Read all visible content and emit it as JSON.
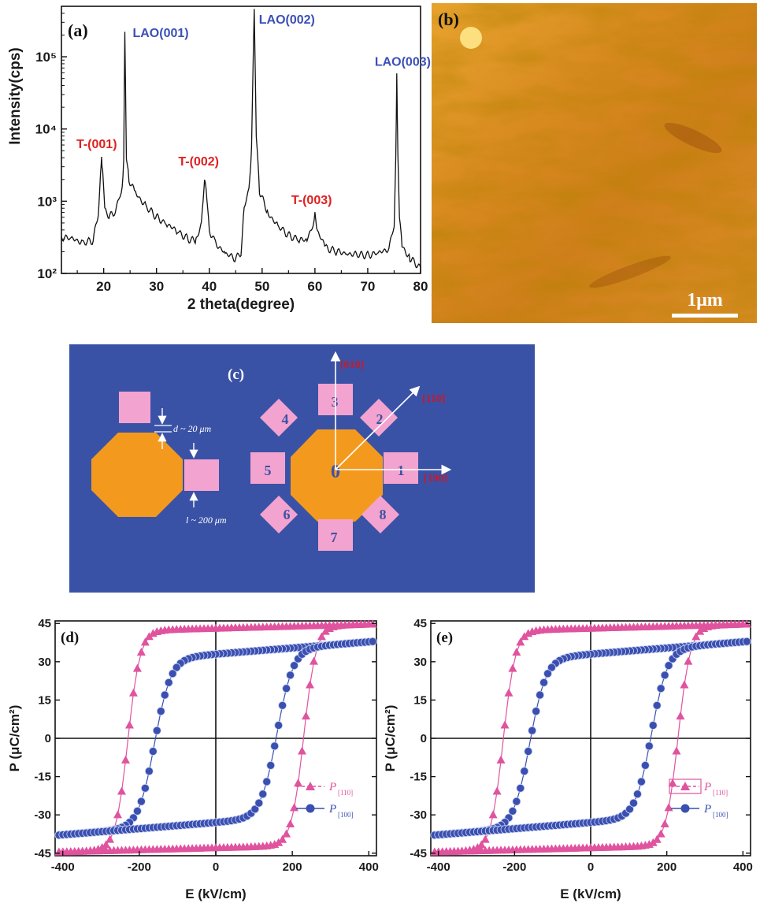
{
  "panels": {
    "a": {
      "tag": "(a)"
    },
    "b": {
      "tag": "(b)",
      "scalebar": "1μm"
    },
    "c": {
      "tag": "(c)",
      "gap_label": "d ~ 20 μm",
      "size_label": "l ~ 200 μm",
      "center_label": "0",
      "pad_labels": [
        "1",
        "2",
        "3",
        "4",
        "5",
        "6",
        "7",
        "8"
      ],
      "dir_labels": [
        "[100]",
        "[110]",
        "[010]"
      ]
    },
    "d": {
      "tag": "(d)"
    },
    "e": {
      "tag": "(e)"
    }
  },
  "colors": {
    "xrd_line": "#111111",
    "substrate_label": "#3b4fb8",
    "film_label": "#e02020",
    "background_c": "#3a52a6",
    "octagon": "#f39a1e",
    "pad": "#f3a3cf",
    "dir_label": "#c21b2e",
    "p110": "#e0539e",
    "p100": "#3a4fb0"
  },
  "chart_data": [
    {
      "type": "line",
      "panel": "a",
      "xlabel": "2 theta(degree)",
      "ylabel": "Intensity(cps)",
      "xlim": [
        12,
        80
      ],
      "ylim": [
        100,
        500000
      ],
      "yscale": "log",
      "xticks": [
        "20",
        "30",
        "40",
        "50",
        "60",
        "70",
        "80"
      ],
      "yticks": [
        "10²",
        "10³",
        "10⁴",
        "10⁵"
      ],
      "peaks": [
        {
          "x": 19.6,
          "y": 4000,
          "label": "T-(001)",
          "kind": "film"
        },
        {
          "x": 24.0,
          "y": 230000,
          "label": "LAO(001)",
          "kind": "substrate"
        },
        {
          "x": 39.2,
          "y": 2100,
          "label": "T-(002)",
          "kind": "film"
        },
        {
          "x": 48.5,
          "y": 480000,
          "label": "LAO(002)",
          "kind": "substrate"
        },
        {
          "x": 60.0,
          "y": 640,
          "label": "T-(003)",
          "kind": "film"
        },
        {
          "x": 75.5,
          "y": 58000,
          "label": "LAO(003)",
          "kind": "substrate"
        }
      ],
      "x": [
        12,
        14,
        16,
        18,
        19,
        19.4,
        19.6,
        19.8,
        20.2,
        21,
        22,
        23,
        23.5,
        23.8,
        24.0,
        24.3,
        24.8,
        26,
        28,
        30,
        32,
        34,
        36,
        37.5,
        38.5,
        39.0,
        39.2,
        39.4,
        40,
        41,
        43,
        45,
        46,
        46.6,
        47.5,
        48.0,
        48.5,
        48.9,
        49.5,
        51,
        53,
        55,
        57,
        58.5,
        59.5,
        60.0,
        60.5,
        62,
        64,
        66,
        68,
        70,
        72,
        74,
        75.0,
        75.3,
        75.5,
        75.7,
        76.0,
        76.5,
        78,
        80
      ],
      "y": [
        320,
        300,
        270,
        280,
        700,
        2500,
        4000,
        2500,
        800,
        600,
        700,
        1100,
        1500,
        3500,
        230000,
        4000,
        2000,
        1300,
        850,
        600,
        480,
        380,
        300,
        280,
        500,
        1500,
        2100,
        1500,
        400,
        270,
        190,
        160,
        200,
        800,
        1500,
        5000,
        480000,
        8000,
        1400,
        700,
        450,
        340,
        290,
        290,
        450,
        640,
        380,
        230,
        200,
        190,
        180,
        180,
        190,
        220,
        500,
        4000,
        58000,
        4000,
        600,
        240,
        160,
        120
      ]
    },
    {
      "type": "scatter",
      "panel": "d",
      "xlabel": "E (kV/cm)",
      "ylabel": "P (μC/cm²)",
      "xlim": [
        -420,
        420
      ],
      "ylim": [
        -46,
        46
      ],
      "xticks": [
        "-400",
        "-200",
        "0",
        "200",
        "400"
      ],
      "yticks": [
        "45",
        "30",
        "15",
        "0",
        "-15",
        "-30",
        "-45"
      ],
      "series": [
        {
          "name": "P[110]",
          "marker": "triangle",
          "Ps": 43,
          "Pr": 41,
          "Ec": 230
        },
        {
          "name": "P[100]",
          "marker": "circle",
          "Ps": 33,
          "Pr": 29,
          "Ec": 160
        }
      ],
      "legend": [
        "P",
        "[110]",
        "P",
        "[100]"
      ]
    },
    {
      "type": "scatter",
      "panel": "e",
      "xlabel": "E (kV/cm)",
      "ylabel": "P (μC/cm²)",
      "xlim": [
        -420,
        420
      ],
      "ylim": [
        -46,
        46
      ],
      "xticks": [
        "-400",
        "-200",
        "0",
        "200",
        "400"
      ],
      "yticks": [
        "45",
        "30",
        "15",
        "0",
        "-15",
        "-30",
        "-45"
      ],
      "series": [
        {
          "name": "P[110]",
          "marker": "triangle",
          "Ps": 43,
          "Pr": 41,
          "Ec": 230
        },
        {
          "name": "P[100]",
          "marker": "circle",
          "Ps": 33,
          "Pr": 29,
          "Ec": 160
        }
      ],
      "legend": [
        "P",
        "[110]",
        "P",
        "[100]"
      ]
    }
  ]
}
